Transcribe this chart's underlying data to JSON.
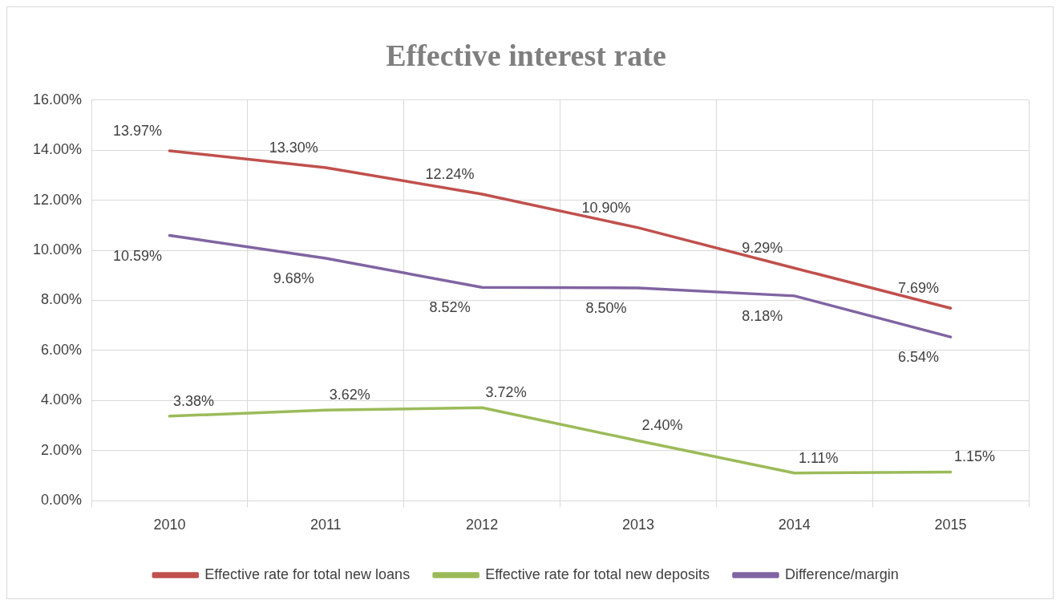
{
  "chart_data": {
    "type": "line",
    "title": "Effective interest rate",
    "categories": [
      "2010",
      "2011",
      "2012",
      "2013",
      "2014",
      "2015"
    ],
    "series": [
      {
        "name": "Effective rate for total new loans",
        "color": "#c0504d",
        "values": [
          13.97,
          13.3,
          12.24,
          10.9,
          9.29,
          7.69
        ],
        "value_labels": [
          "13.97%",
          "13.30%",
          "12.24%",
          "10.90%",
          "9.29%",
          "7.69%"
        ]
      },
      {
        "name": "Effective rate for total new deposits",
        "color": "#9bbb59",
        "values": [
          3.38,
          3.62,
          3.72,
          2.4,
          1.11,
          1.15
        ],
        "value_labels": [
          "3.38%",
          "3.62%",
          "3.72%",
          "2.40%",
          "1.11%",
          "1.15%"
        ]
      },
      {
        "name": "Difference/margin",
        "color": "#8064a2",
        "values": [
          10.59,
          9.68,
          8.52,
          8.5,
          8.18,
          6.54
        ],
        "value_labels": [
          "10.59%",
          "9.68%",
          "8.52%",
          "8.50%",
          "8.18%",
          "6.54%"
        ]
      }
    ],
    "ylim": [
      0,
      16
    ],
    "yticks": [
      {
        "value": 0,
        "label": "0.00%"
      },
      {
        "value": 2,
        "label": "2.00%"
      },
      {
        "value": 4,
        "label": "4.00%"
      },
      {
        "value": 6,
        "label": "6.00%"
      },
      {
        "value": 8,
        "label": "8.00%"
      },
      {
        "value": 10,
        "label": "10.00%"
      },
      {
        "value": 12,
        "label": "12.00%"
      },
      {
        "value": 14,
        "label": "14.00%"
      },
      {
        "value": 16,
        "label": "16.00%"
      }
    ],
    "grid": true,
    "legend": "bottom",
    "marker": "none",
    "line_style": "solid"
  }
}
